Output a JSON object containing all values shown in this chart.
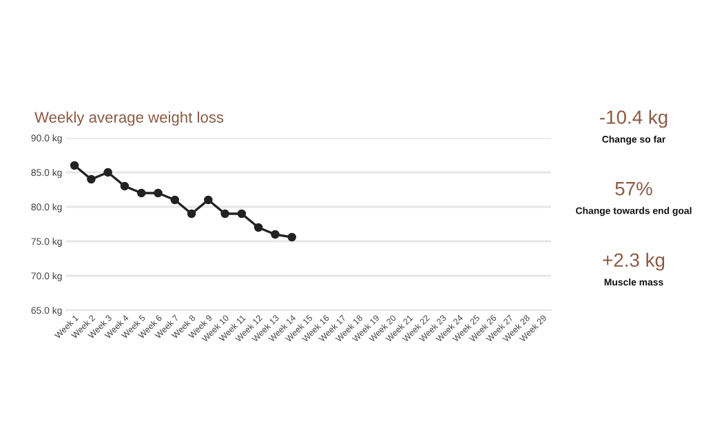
{
  "chart_data": [
    {
      "type": "line",
      "title": "Weekly average weight loss",
      "categories": [
        "Week 1",
        "Week 2",
        "Week 3",
        "Week 4",
        "Week 5",
        "Week 6",
        "Week 7",
        "Week 8",
        "Week 9",
        "Week 10",
        "Week 11",
        "Week 12",
        "Week 13",
        "Week 14",
        "Week 15",
        "Week 16",
        "Week 17",
        "Week 18",
        "Week 19",
        "Week 20",
        "Week 21",
        "Week 22",
        "Week 23",
        "Week 24",
        "Week 25",
        "Week 26",
        "Week 27",
        "Week 28",
        "Week 29"
      ],
      "series": [
        {
          "color": "#222222",
          "values": [
            86,
            84,
            85,
            83,
            82,
            82,
            81,
            79,
            81,
            79,
            79,
            77,
            76,
            75.6,
            null,
            null,
            null,
            null,
            null,
            null,
            null,
            null,
            null,
            null,
            null,
            null,
            null,
            null,
            null
          ]
        }
      ],
      "ylim": [
        65,
        90
      ],
      "yticks": [
        {
          "value": 65,
          "label": "65.0 kg"
        },
        {
          "value": 70,
          "label": "70.0 kg"
        },
        {
          "value": 75,
          "label": "75.0 kg"
        },
        {
          "value": 80,
          "label": "80.0 kg"
        },
        {
          "value": 85,
          "label": "85.0 kg"
        },
        {
          "value": 90,
          "label": "90.0 kg"
        }
      ],
      "grid": "y",
      "marker": "circle",
      "line_style": "solid",
      "legend": false
    },
    {
      "type": "other",
      "annotations": [
        "-10.4 kg",
        "Change so far",
        "57%",
        "Change towards end goal",
        "+2.3 kg",
        "Muscle mass"
      ]
    }
  ]
}
